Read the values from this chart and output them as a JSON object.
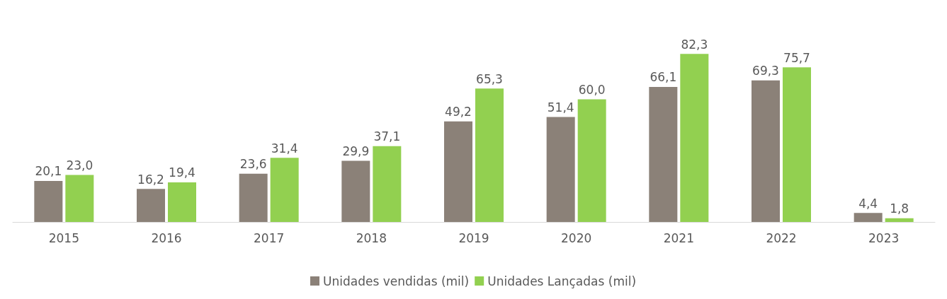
{
  "chart_data": {
    "type": "bar",
    "categories": [
      "2015",
      "2016",
      "2017",
      "2018",
      "2019",
      "2020",
      "2021",
      "2022",
      "2023"
    ],
    "series": [
      {
        "name": "Unidades vendidas (mil)",
        "color": "#8b8178",
        "values": [
          20.1,
          16.2,
          23.6,
          29.9,
          49.2,
          51.4,
          66.1,
          69.3,
          4.4
        ],
        "value_labels": [
          "20,1",
          "16,2",
          "23,6",
          "29,9",
          "49,2",
          "51,4",
          "66,1",
          "69,3",
          "4,4"
        ]
      },
      {
        "name": "Unidades Lançadas (mil)",
        "color": "#92d050",
        "values": [
          23.0,
          19.4,
          31.4,
          37.1,
          65.3,
          60.0,
          82.3,
          75.7,
          1.8
        ],
        "value_labels": [
          "23,0",
          "19,4",
          "31,4",
          "37,1",
          "65,3",
          "60,0",
          "82,3",
          "75,7",
          "1,8"
        ]
      }
    ],
    "legend": "bottom",
    "grid": false,
    "tick_labels": "x"
  }
}
